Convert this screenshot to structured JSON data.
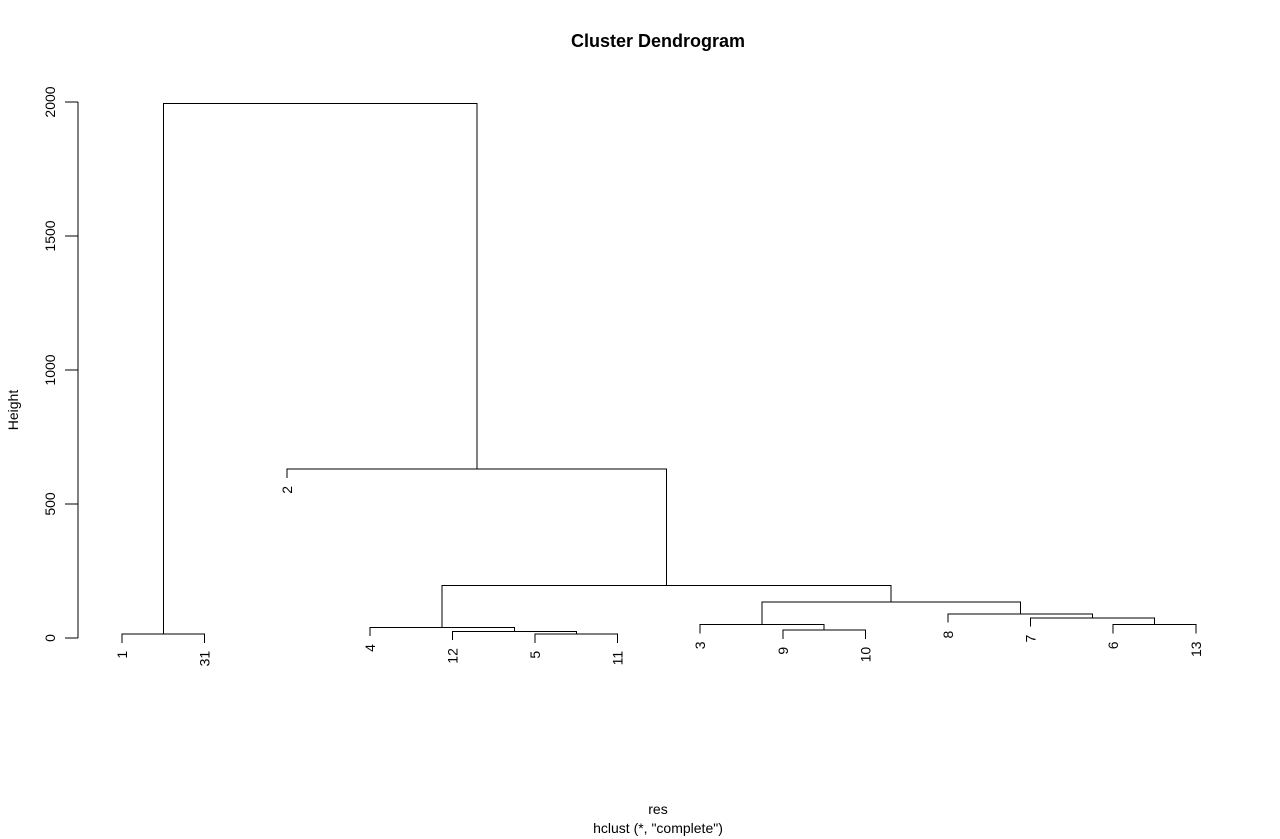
{
  "chart_data": {
    "type": "dendrogram",
    "title": "Cluster Dendrogram",
    "xlabel": "res",
    "sublabel": "hclust (*, \"complete\")",
    "ylabel": "Height",
    "ylim": [
      0,
      2000
    ],
    "yticks": [
      0,
      500,
      1000,
      1500,
      2000
    ],
    "leaf_order": [
      "1",
      "31",
      "2",
      "4",
      "12",
      "5",
      "11",
      "3",
      "9",
      "10",
      "8",
      "7",
      "6",
      "13"
    ],
    "merges": [
      {
        "id": "m1",
        "left": "1",
        "right": "31",
        "height": 15
      },
      {
        "id": "m2",
        "left": "5",
        "right": "11",
        "height": 15
      },
      {
        "id": "m3",
        "left": "12",
        "right": "m2",
        "height": 25
      },
      {
        "id": "m4",
        "left": "4",
        "right": "m3",
        "height": 40
      },
      {
        "id": "m5",
        "left": "9",
        "right": "10",
        "height": 30
      },
      {
        "id": "m6",
        "left": "3",
        "right": "m5",
        "height": 50
      },
      {
        "id": "m7",
        "left": "6",
        "right": "13",
        "height": 50
      },
      {
        "id": "m8",
        "left": "7",
        "right": "m7",
        "height": 75
      },
      {
        "id": "m9",
        "left": "8",
        "right": "m8",
        "height": 90
      },
      {
        "id": "m10",
        "left": "m6",
        "right": "m9",
        "height": 135
      },
      {
        "id": "m11",
        "left": "m4",
        "right": "m10",
        "height": 195
      },
      {
        "id": "m12",
        "left": "2",
        "right": "m11",
        "height": 630
      },
      {
        "id": "m13",
        "left": "m1",
        "right": "m12",
        "height": 1995
      }
    ],
    "grid": false,
    "legend": "none"
  }
}
